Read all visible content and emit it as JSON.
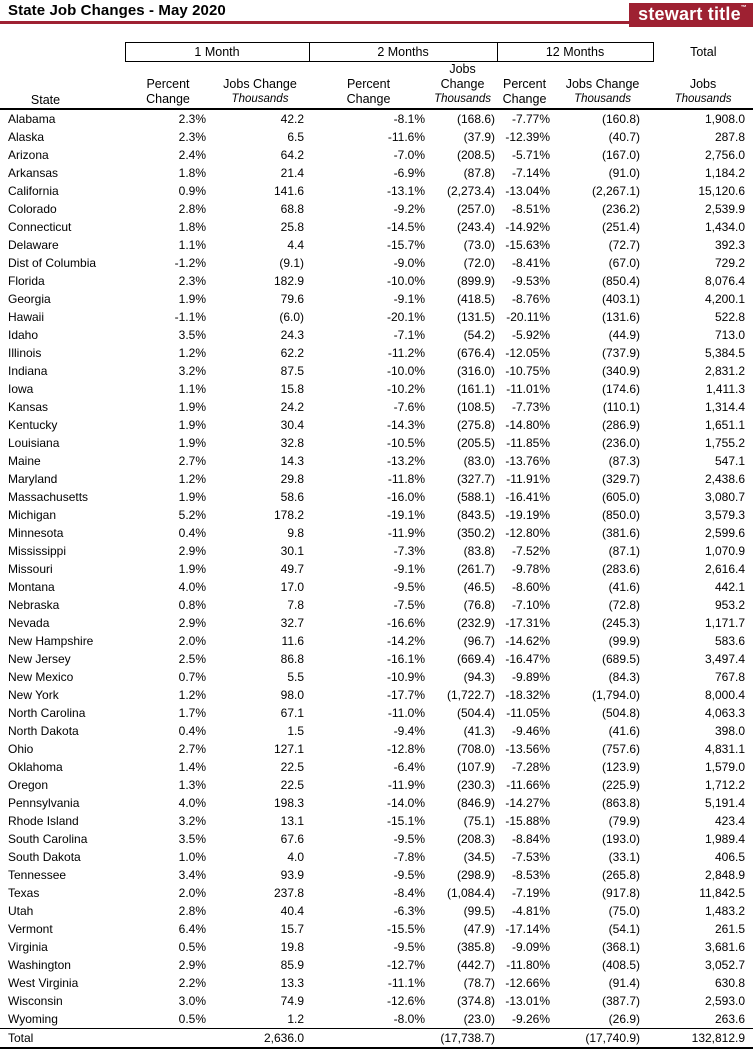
{
  "header": {
    "title": "State Job Changes - May 2020",
    "logo_text": "stewart title",
    "logo_mark": "™",
    "brand_red": "#9e2132"
  },
  "table": {
    "state_header": "State",
    "group_headers": [
      "1 Month",
      "2 Months",
      "12 Months"
    ],
    "percent_header": {
      "line1": "Percent",
      "line2": "Change"
    },
    "jobs_header": {
      "line1": "Jobs Change",
      "line2": "Thousands"
    },
    "total_header": {
      "line1": "Total",
      "line2": "Jobs",
      "line3": "Thousands"
    },
    "columns": [
      "state",
      "1m-percent-change",
      "1m-jobs-change",
      "2m-percent-change",
      "2m-jobs-change",
      "12m-percent-change",
      "12m-jobs-change",
      "total-jobs"
    ],
    "rows": [
      [
        "Alabama",
        "2.3%",
        "42.2",
        "-8.1%",
        "(168.6)",
        "-7.77%",
        "(160.8)",
        "1,908.0"
      ],
      [
        "Alaska",
        "2.3%",
        "6.5",
        "-11.6%",
        "(37.9)",
        "-12.39%",
        "(40.7)",
        "287.8"
      ],
      [
        "Arizona",
        "2.4%",
        "64.2",
        "-7.0%",
        "(208.5)",
        "-5.71%",
        "(167.0)",
        "2,756.0"
      ],
      [
        "Arkansas",
        "1.8%",
        "21.4",
        "-6.9%",
        "(87.8)",
        "-7.14%",
        "(91.0)",
        "1,184.2"
      ],
      [
        "California",
        "0.9%",
        "141.6",
        "-13.1%",
        "(2,273.4)",
        "-13.04%",
        "(2,267.1)",
        "15,120.6"
      ],
      [
        "Colorado",
        "2.8%",
        "68.8",
        "-9.2%",
        "(257.0)",
        "-8.51%",
        "(236.2)",
        "2,539.9"
      ],
      [
        "Connecticut",
        "1.8%",
        "25.8",
        "-14.5%",
        "(243.4)",
        "-14.92%",
        "(251.4)",
        "1,434.0"
      ],
      [
        "Delaware",
        "1.1%",
        "4.4",
        "-15.7%",
        "(73.0)",
        "-15.63%",
        "(72.7)",
        "392.3"
      ],
      [
        "Dist of Columbia",
        "-1.2%",
        "(9.1)",
        "-9.0%",
        "(72.0)",
        "-8.41%",
        "(67.0)",
        "729.2"
      ],
      [
        "Florida",
        "2.3%",
        "182.9",
        "-10.0%",
        "(899.9)",
        "-9.53%",
        "(850.4)",
        "8,076.4"
      ],
      [
        "Georgia",
        "1.9%",
        "79.6",
        "-9.1%",
        "(418.5)",
        "-8.76%",
        "(403.1)",
        "4,200.1"
      ],
      [
        "Hawaii",
        "-1.1%",
        "(6.0)",
        "-20.1%",
        "(131.5)",
        "-20.11%",
        "(131.6)",
        "522.8"
      ],
      [
        "Idaho",
        "3.5%",
        "24.3",
        "-7.1%",
        "(54.2)",
        "-5.92%",
        "(44.9)",
        "713.0"
      ],
      [
        "Illinois",
        "1.2%",
        "62.2",
        "-11.2%",
        "(676.4)",
        "-12.05%",
        "(737.9)",
        "5,384.5"
      ],
      [
        "Indiana",
        "3.2%",
        "87.5",
        "-10.0%",
        "(316.0)",
        "-10.75%",
        "(340.9)",
        "2,831.2"
      ],
      [
        "Iowa",
        "1.1%",
        "15.8",
        "-10.2%",
        "(161.1)",
        "-11.01%",
        "(174.6)",
        "1,411.3"
      ],
      [
        "Kansas",
        "1.9%",
        "24.2",
        "-7.6%",
        "(108.5)",
        "-7.73%",
        "(110.1)",
        "1,314.4"
      ],
      [
        "Kentucky",
        "1.9%",
        "30.4",
        "-14.3%",
        "(275.8)",
        "-14.80%",
        "(286.9)",
        "1,651.1"
      ],
      [
        "Louisiana",
        "1.9%",
        "32.8",
        "-10.5%",
        "(205.5)",
        "-11.85%",
        "(236.0)",
        "1,755.2"
      ],
      [
        "Maine",
        "2.7%",
        "14.3",
        "-13.2%",
        "(83.0)",
        "-13.76%",
        "(87.3)",
        "547.1"
      ],
      [
        "Maryland",
        "1.2%",
        "29.8",
        "-11.8%",
        "(327.7)",
        "-11.91%",
        "(329.7)",
        "2,438.6"
      ],
      [
        "Massachusetts",
        "1.9%",
        "58.6",
        "-16.0%",
        "(588.1)",
        "-16.41%",
        "(605.0)",
        "3,080.7"
      ],
      [
        "Michigan",
        "5.2%",
        "178.2",
        "-19.1%",
        "(843.5)",
        "-19.19%",
        "(850.0)",
        "3,579.3"
      ],
      [
        "Minnesota",
        "0.4%",
        "9.8",
        "-11.9%",
        "(350.2)",
        "-12.80%",
        "(381.6)",
        "2,599.6"
      ],
      [
        "Mississippi",
        "2.9%",
        "30.1",
        "-7.3%",
        "(83.8)",
        "-7.52%",
        "(87.1)",
        "1,070.9"
      ],
      [
        "Missouri",
        "1.9%",
        "49.7",
        "-9.1%",
        "(261.7)",
        "-9.78%",
        "(283.6)",
        "2,616.4"
      ],
      [
        "Montana",
        "4.0%",
        "17.0",
        "-9.5%",
        "(46.5)",
        "-8.60%",
        "(41.6)",
        "442.1"
      ],
      [
        "Nebraska",
        "0.8%",
        "7.8",
        "-7.5%",
        "(76.8)",
        "-7.10%",
        "(72.8)",
        "953.2"
      ],
      [
        "Nevada",
        "2.9%",
        "32.7",
        "-16.6%",
        "(232.9)",
        "-17.31%",
        "(245.3)",
        "1,171.7"
      ],
      [
        "New Hampshire",
        "2.0%",
        "11.6",
        "-14.2%",
        "(96.7)",
        "-14.62%",
        "(99.9)",
        "583.6"
      ],
      [
        "New Jersey",
        "2.5%",
        "86.8",
        "-16.1%",
        "(669.4)",
        "-16.47%",
        "(689.5)",
        "3,497.4"
      ],
      [
        "New Mexico",
        "0.7%",
        "5.5",
        "-10.9%",
        "(94.3)",
        "-9.89%",
        "(84.3)",
        "767.8"
      ],
      [
        "New York",
        "1.2%",
        "98.0",
        "-17.7%",
        "(1,722.7)",
        "-18.32%",
        "(1,794.0)",
        "8,000.4"
      ],
      [
        "North Carolina",
        "1.7%",
        "67.1",
        "-11.0%",
        "(504.4)",
        "-11.05%",
        "(504.8)",
        "4,063.3"
      ],
      [
        "North Dakota",
        "0.4%",
        "1.5",
        "-9.4%",
        "(41.3)",
        "-9.46%",
        "(41.6)",
        "398.0"
      ],
      [
        "Ohio",
        "2.7%",
        "127.1",
        "-12.8%",
        "(708.0)",
        "-13.56%",
        "(757.6)",
        "4,831.1"
      ],
      [
        "Oklahoma",
        "1.4%",
        "22.5",
        "-6.4%",
        "(107.9)",
        "-7.28%",
        "(123.9)",
        "1,579.0"
      ],
      [
        "Oregon",
        "1.3%",
        "22.5",
        "-11.9%",
        "(230.3)",
        "-11.66%",
        "(225.9)",
        "1,712.2"
      ],
      [
        "Pennsylvania",
        "4.0%",
        "198.3",
        "-14.0%",
        "(846.9)",
        "-14.27%",
        "(863.8)",
        "5,191.4"
      ],
      [
        "Rhode Island",
        "3.2%",
        "13.1",
        "-15.1%",
        "(75.1)",
        "-15.88%",
        "(79.9)",
        "423.4"
      ],
      [
        "South Carolina",
        "3.5%",
        "67.6",
        "-9.5%",
        "(208.3)",
        "-8.84%",
        "(193.0)",
        "1,989.4"
      ],
      [
        "South Dakota",
        "1.0%",
        "4.0",
        "-7.8%",
        "(34.5)",
        "-7.53%",
        "(33.1)",
        "406.5"
      ],
      [
        "Tennessee",
        "3.4%",
        "93.9",
        "-9.5%",
        "(298.9)",
        "-8.53%",
        "(265.8)",
        "2,848.9"
      ],
      [
        "Texas",
        "2.0%",
        "237.8",
        "-8.4%",
        "(1,084.4)",
        "-7.19%",
        "(917.8)",
        "11,842.5"
      ],
      [
        "Utah",
        "2.8%",
        "40.4",
        "-6.3%",
        "(99.5)",
        "-4.81%",
        "(75.0)",
        "1,483.2"
      ],
      [
        "Vermont",
        "6.4%",
        "15.7",
        "-15.5%",
        "(47.9)",
        "-17.14%",
        "(54.1)",
        "261.5"
      ],
      [
        "Virginia",
        "0.5%",
        "19.8",
        "-9.5%",
        "(385.8)",
        "-9.09%",
        "(368.1)",
        "3,681.6"
      ],
      [
        "Washington",
        "2.9%",
        "85.9",
        "-12.7%",
        "(442.7)",
        "-11.80%",
        "(408.5)",
        "3,052.7"
      ],
      [
        "West Virginia",
        "2.2%",
        "13.3",
        "-11.1%",
        "(78.7)",
        "-12.66%",
        "(91.4)",
        "630.8"
      ],
      [
        "Wisconsin",
        "3.0%",
        "74.9",
        "-12.6%",
        "(374.8)",
        "-13.01%",
        "(387.7)",
        "2,593.0"
      ],
      [
        "Wyoming",
        "0.5%",
        "1.2",
        "-8.0%",
        "(23.0)",
        "-9.26%",
        "(26.9)",
        "263.6"
      ]
    ],
    "total_row": [
      "Total",
      "",
      "2,636.0",
      "",
      "(17,738.7)",
      "",
      "(17,740.9)",
      "132,812.9"
    ]
  }
}
